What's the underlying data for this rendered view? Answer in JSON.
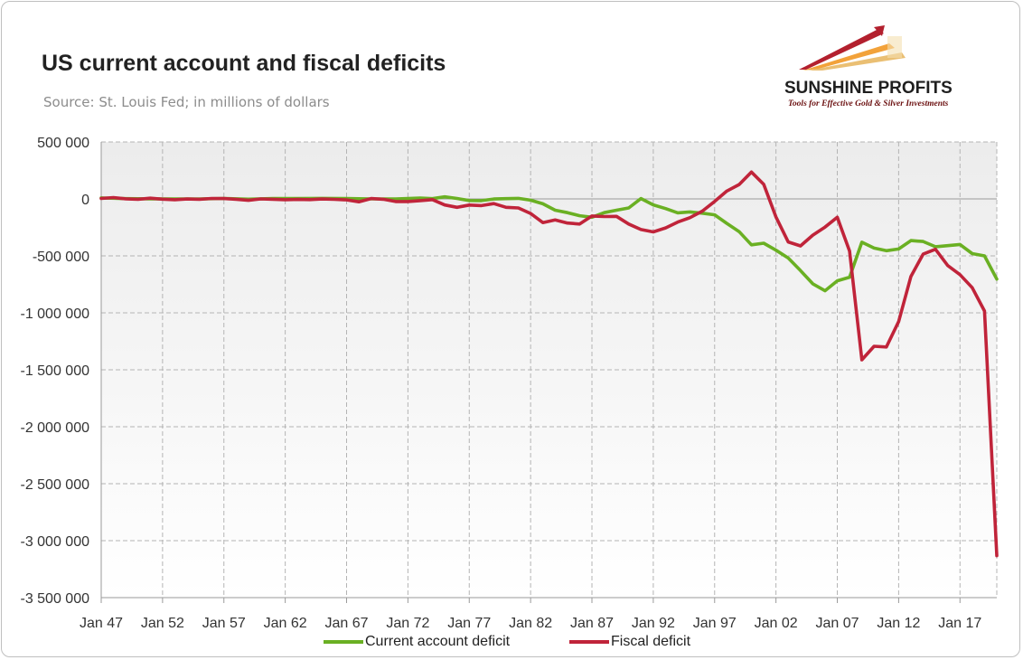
{
  "header": {
    "title": "US current account and fiscal deficits",
    "subtitle": "Source: St. Louis Fed; in millions of dollars"
  },
  "logo": {
    "name": "SUNSHINE PROFITS",
    "tagline": "Tools for Effective Gold & Silver Investments",
    "icon": "rising-arrows-logo-icon"
  },
  "colors": {
    "current_account": "#6ab023",
    "fiscal": "#c0243a",
    "grid": "#b4b4b4",
    "axis": "#9a9a9a",
    "plot_top": "#ececec",
    "plot_bottom": "#ffffff"
  },
  "chart_data": {
    "type": "line",
    "title": "US current account and fiscal deficits",
    "subtitle": "Source: St. Louis Fed; in millions of dollars",
    "xlabel": "",
    "ylabel": "",
    "x_start_year": 1947,
    "x_end_year": 2020,
    "tick_labels": [
      "Jan 47",
      "Jan 52",
      "Jan 57",
      "Jan 62",
      "Jan 67",
      "Jan 72",
      "Jan 77",
      "Jan 82",
      "Jan 87",
      "Jan 92",
      "Jan 97",
      "Jan 02",
      "Jan 07",
      "Jan 12",
      "Jan 17"
    ],
    "y_tick_labels": [
      "500 000",
      "0",
      "-500 000",
      "-1 000 000",
      "-1 500 000",
      "-2 000 000",
      "-2 500 000",
      "-3 000 000",
      "-3 500 000"
    ],
    "ylim": [
      -3500000,
      500000
    ],
    "y_step": 500000,
    "grid": true,
    "legend": "bottom",
    "series": [
      {
        "name": "Current account deficit",
        "points": [
          [
            1947,
            9000
          ],
          [
            1949,
            2000
          ],
          [
            1951,
            1000
          ],
          [
            1953,
            -1000
          ],
          [
            1955,
            -1000
          ],
          [
            1957,
            4000
          ],
          [
            1959,
            -2000
          ],
          [
            1961,
            3000
          ],
          [
            1963,
            4000
          ],
          [
            1965,
            5000
          ],
          [
            1967,
            3000
          ],
          [
            1969,
            0
          ],
          [
            1971,
            -1000
          ],
          [
            1973,
            7000
          ],
          [
            1974,
            2000
          ],
          [
            1975,
            18000
          ],
          [
            1976,
            4000
          ],
          [
            1977,
            -14000
          ],
          [
            1978,
            -15000
          ],
          [
            1979,
            -1000
          ],
          [
            1980,
            2000
          ],
          [
            1981,
            5000
          ],
          [
            1982,
            -11000
          ],
          [
            1983,
            -43000
          ],
          [
            1984,
            -99000
          ],
          [
            1985,
            -121000
          ],
          [
            1986,
            -148000
          ],
          [
            1987,
            -161000
          ],
          [
            1988,
            -121000
          ],
          [
            1989,
            -99000
          ],
          [
            1990,
            -79000
          ],
          [
            1991,
            3000
          ],
          [
            1992,
            -52000
          ],
          [
            1993,
            -85000
          ],
          [
            1994,
            -122000
          ],
          [
            1995,
            -114000
          ],
          [
            1996,
            -125000
          ],
          [
            1997,
            -140000
          ],
          [
            1998,
            -215000
          ],
          [
            1999,
            -287000
          ],
          [
            2000,
            -403000
          ],
          [
            2001,
            -389000
          ],
          [
            2002,
            -450000
          ],
          [
            2003,
            -519000
          ],
          [
            2004,
            -629000
          ],
          [
            2005,
            -745000
          ],
          [
            2006,
            -806000
          ],
          [
            2007,
            -719000
          ],
          [
            2008,
            -687000
          ],
          [
            2009,
            -380000
          ],
          [
            2010,
            -432000
          ],
          [
            2011,
            -455000
          ],
          [
            2012,
            -440000
          ],
          [
            2013,
            -366000
          ],
          [
            2014,
            -374000
          ],
          [
            2015,
            -420000
          ],
          [
            2016,
            -410000
          ],
          [
            2017,
            -400000
          ],
          [
            2018,
            -480000
          ],
          [
            2019,
            -500000
          ],
          [
            2020,
            -704000
          ]
        ]
      },
      {
        "name": "Fiscal deficit",
        "points": [
          [
            1947,
            4000
          ],
          [
            1948,
            12000
          ],
          [
            1949,
            1000
          ],
          [
            1950,
            -3000
          ],
          [
            1951,
            6000
          ],
          [
            1952,
            -2000
          ],
          [
            1953,
            -7000
          ],
          [
            1954,
            -1000
          ],
          [
            1955,
            -3000
          ],
          [
            1956,
            4000
          ],
          [
            1957,
            3000
          ],
          [
            1958,
            -3000
          ],
          [
            1959,
            -13000
          ],
          [
            1960,
            0
          ],
          [
            1961,
            -3000
          ],
          [
            1962,
            -7000
          ],
          [
            1963,
            -5000
          ],
          [
            1964,
            -6000
          ],
          [
            1965,
            -1000
          ],
          [
            1966,
            -4000
          ],
          [
            1967,
            -9000
          ],
          [
            1968,
            -25000
          ],
          [
            1969,
            3000
          ],
          [
            1970,
            -3000
          ],
          [
            1971,
            -23000
          ],
          [
            1972,
            -23000
          ],
          [
            1973,
            -15000
          ],
          [
            1974,
            -6000
          ],
          [
            1975,
            -53000
          ],
          [
            1976,
            -74000
          ],
          [
            1977,
            -54000
          ],
          [
            1978,
            -59000
          ],
          [
            1979,
            -41000
          ],
          [
            1980,
            -74000
          ],
          [
            1981,
            -79000
          ],
          [
            1982,
            -128000
          ],
          [
            1983,
            -208000
          ],
          [
            1984,
            -185000
          ],
          [
            1985,
            -212000
          ],
          [
            1986,
            -221000
          ],
          [
            1987,
            -150000
          ],
          [
            1988,
            -155000
          ],
          [
            1989,
            -153000
          ],
          [
            1990,
            -221000
          ],
          [
            1991,
            -269000
          ],
          [
            1992,
            -290000
          ],
          [
            1993,
            -255000
          ],
          [
            1994,
            -203000
          ],
          [
            1995,
            -164000
          ],
          [
            1996,
            -107000
          ],
          [
            1997,
            -22000
          ],
          [
            1998,
            69000
          ],
          [
            1999,
            126000
          ],
          [
            2000,
            236000
          ],
          [
            2001,
            128000
          ],
          [
            2002,
            -158000
          ],
          [
            2003,
            -378000
          ],
          [
            2004,
            -413000
          ],
          [
            2005,
            -318000
          ],
          [
            2006,
            -248000
          ],
          [
            2007,
            -161000
          ],
          [
            2008,
            -459000
          ],
          [
            2009,
            -1413000
          ],
          [
            2010,
            -1294000
          ],
          [
            2011,
            -1300000
          ],
          [
            2012,
            -1077000
          ],
          [
            2013,
            -680000
          ],
          [
            2014,
            -485000
          ],
          [
            2015,
            -442000
          ],
          [
            2016,
            -585000
          ],
          [
            2017,
            -665000
          ],
          [
            2018,
            -779000
          ],
          [
            2019,
            -984000
          ],
          [
            2020,
            -3132000
          ]
        ]
      }
    ]
  }
}
